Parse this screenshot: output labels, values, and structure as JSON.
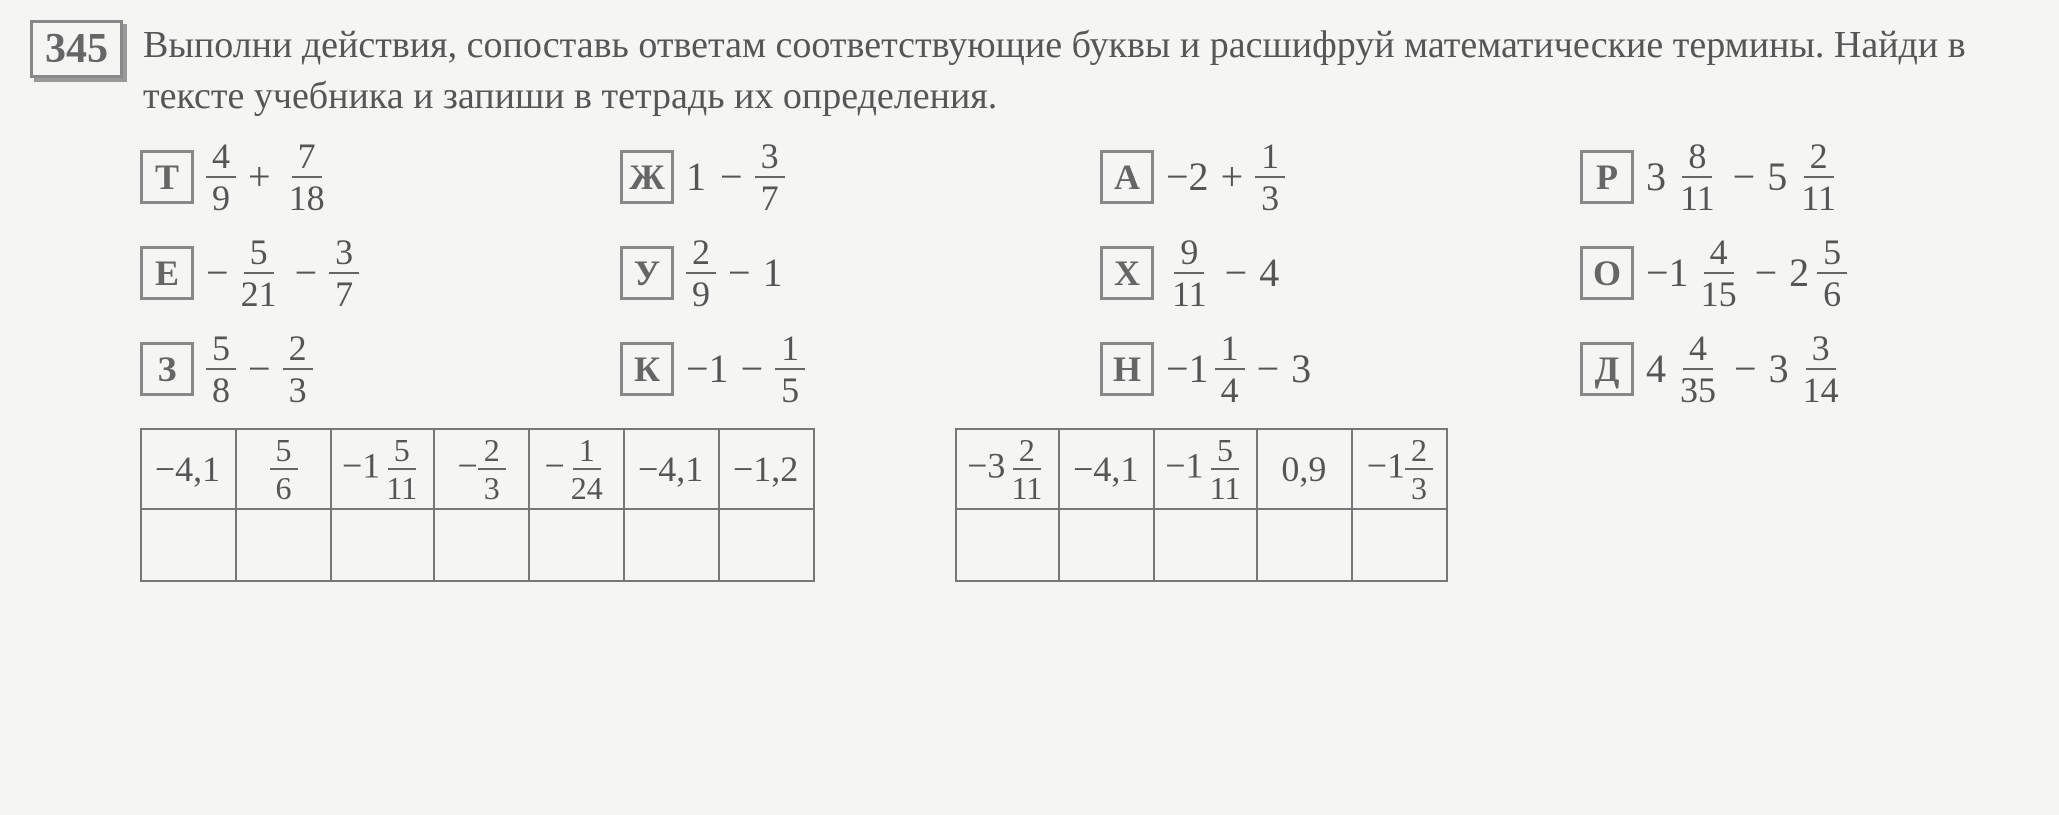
{
  "problem_number": "345",
  "instructions": "Выполни действия, сопоставь ответам соответствующие буквы и расшифруй математические термины. Найди в тексте учебника и запиши в тетрадь их определения.",
  "expressions": [
    [
      {
        "letter": "Т",
        "type": "sum_frac_frac",
        "n1": 4,
        "d1": 9,
        "op": "+",
        "n2": 7,
        "d2": 18
      },
      {
        "letter": "Ж",
        "type": "int_minus_frac",
        "a": 1,
        "op": "−",
        "n2": 3,
        "d2": 7
      },
      {
        "letter": "А",
        "type": "neg_int_plus_frac",
        "a": -2,
        "op": "+",
        "n2": 1,
        "d2": 3
      },
      {
        "letter": "Р",
        "type": "mixed_minus_mixed",
        "w1": 3,
        "n1": 8,
        "d1": 11,
        "op": "−",
        "w2": 5,
        "n2": 2,
        "d2": 11
      }
    ],
    [
      {
        "letter": "Е",
        "type": "neg_frac_minus_frac",
        "n1": 5,
        "d1": 21,
        "op": "−",
        "n2": 3,
        "d2": 7
      },
      {
        "letter": "У",
        "type": "frac_minus_int",
        "n1": 2,
        "d1": 9,
        "op": "−",
        "b": 1
      },
      {
        "letter": "Х",
        "type": "frac_minus_int",
        "n1": 9,
        "d1": 11,
        "op": "−",
        "b": 4
      },
      {
        "letter": "О",
        "type": "neg_mixed_minus_mixed",
        "w1": 1,
        "n1": 4,
        "d1": 15,
        "op": "−",
        "w2": 2,
        "n2": 5,
        "d2": 6
      }
    ],
    [
      {
        "letter": "З",
        "type": "frac_minus_frac",
        "n1": 5,
        "d1": 8,
        "op": "−",
        "n2": 2,
        "d2": 3
      },
      {
        "letter": "К",
        "type": "neg_int_minus_frac",
        "a": -1,
        "op": "−",
        "n2": 1,
        "d2": 5
      },
      {
        "letter": "Н",
        "type": "neg_mixed_minus_int",
        "w1": 1,
        "n1": 1,
        "d1": 4,
        "op": "−",
        "b": 3
      },
      {
        "letter": "Д",
        "type": "mixed_minus_mixed",
        "w1": 4,
        "n1": 4,
        "d1": 35,
        "op": "−",
        "w2": 3,
        "n2": 3,
        "d2": 14
      }
    ]
  ],
  "table1": [
    {
      "kind": "dec",
      "v": "−4,1"
    },
    {
      "kind": "frac",
      "n": 5,
      "d": 6
    },
    {
      "kind": "neg_mixed",
      "w": 1,
      "n": 5,
      "d": 11
    },
    {
      "kind": "neg_frac",
      "n": 2,
      "d": 3
    },
    {
      "kind": "neg_frac",
      "n": 1,
      "d": 24
    },
    {
      "kind": "dec",
      "v": "−4,1"
    },
    {
      "kind": "dec",
      "v": "−1,2"
    }
  ],
  "table2": [
    {
      "kind": "neg_mixed",
      "w": 3,
      "n": 2,
      "d": 11
    },
    {
      "kind": "dec",
      "v": "−4,1"
    },
    {
      "kind": "neg_mixed",
      "w": 1,
      "n": 5,
      "d": 11
    },
    {
      "kind": "dec",
      "v": "0,9"
    },
    {
      "kind": "neg_mixed",
      "w": 1,
      "n": 2,
      "d": 3
    }
  ],
  "colors": {
    "bg": "#f5f5f3",
    "text": "#555555",
    "border": "#888888"
  },
  "fontsize": {
    "body": 38,
    "math": 40
  }
}
